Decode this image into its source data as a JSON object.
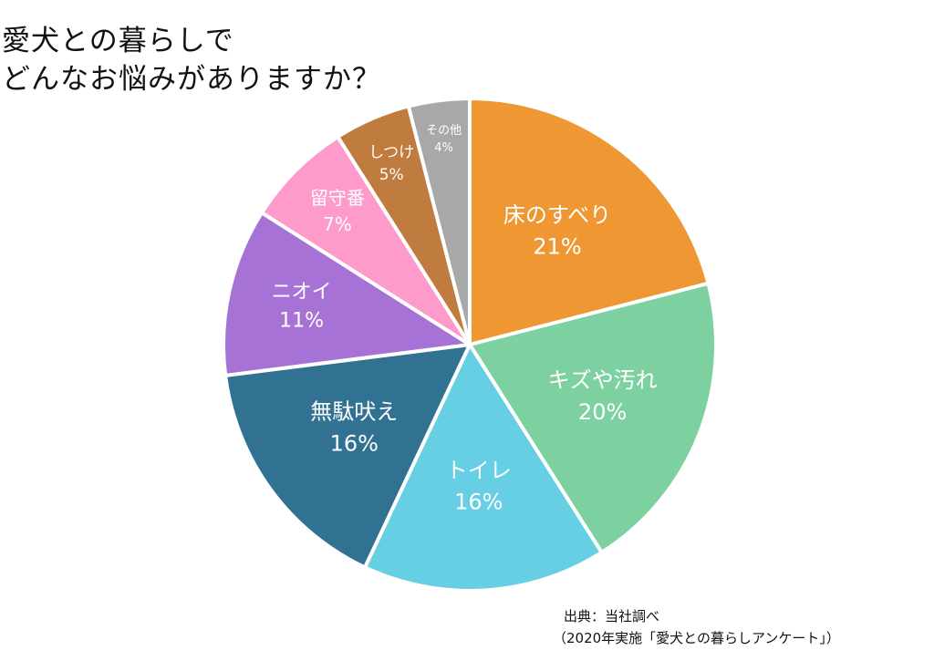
{
  "title": {
    "line1": "愛犬との暮らしで",
    "line2": "どんなお悩みがありますか？"
  },
  "source": {
    "line1": "出典：当社調べ",
    "line2": "（2020年実施「愛犬との暮らしアンケート」）"
  },
  "chart_data": {
    "type": "pie",
    "slices": [
      {
        "label": "床のすべり",
        "value": 21,
        "display": "21%",
        "color": "#EE9733"
      },
      {
        "label": "キズや汚れ",
        "value": 20,
        "display": "20%",
        "color": "#7DD1A0"
      },
      {
        "label": "トイレ",
        "value": 16,
        "display": "16%",
        "color": "#66CFE4"
      },
      {
        "label": "無駄吠え",
        "value": 16,
        "display": "16%",
        "color": "#317192"
      },
      {
        "label": "ニオイ",
        "value": 11,
        "display": "11%",
        "color": "#A772D6"
      },
      {
        "label": "留守番",
        "value": 7,
        "display": "7%",
        "color": "#FF9BCB"
      },
      {
        "label": "しつけ",
        "value": 5,
        "display": "5%",
        "color": "#C07C3E"
      },
      {
        "label": "その他",
        "value": 4,
        "display": "4%",
        "color": "#A8A8A8"
      }
    ],
    "start_angle": "12 o'clock",
    "direction": "clockwise",
    "legend": "none",
    "label_color": "#ffffff"
  }
}
